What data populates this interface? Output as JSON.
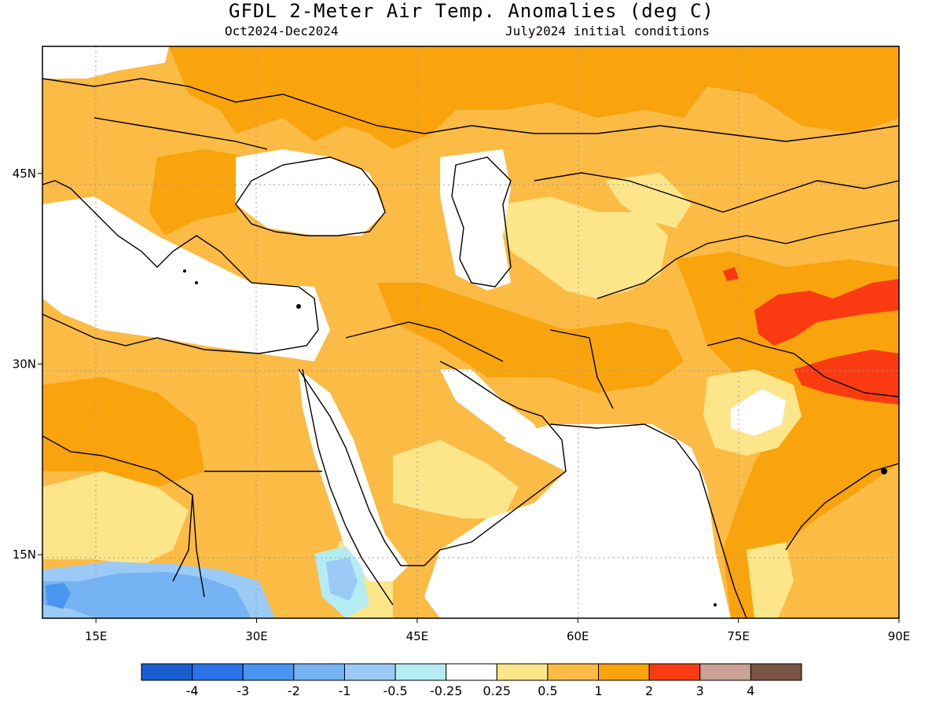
{
  "header": {
    "title": "GFDL 2-Meter Air Temp. Anomalies (deg C)",
    "period": "Oct2024-Dec2024",
    "init": "July2024 initial conditions"
  },
  "map": {
    "lon_range": [
      10,
      90
    ],
    "lat_range": [
      10,
      55
    ],
    "x_ticks": [
      {
        "lon": 15,
        "label": "15E"
      },
      {
        "lon": 30,
        "label": "30E"
      },
      {
        "lon": 45,
        "label": "45E"
      },
      {
        "lon": 60,
        "label": "60E"
      },
      {
        "lon": 75,
        "label": "75E"
      },
      {
        "lon": 90,
        "label": "90E"
      }
    ],
    "y_ticks": [
      {
        "lat": 45,
        "label": "45N"
      },
      {
        "lat": 30,
        "label": "30N"
      },
      {
        "lat": 15,
        "label": "15N"
      }
    ]
  },
  "colorbar": {
    "colors": [
      "#1a5fd1",
      "#2a73e8",
      "#4a95f0",
      "#76b3f4",
      "#9ccaf7",
      "#b4ecf2",
      "#ffffff",
      "#fde68a",
      "#fbbb45",
      "#f9a30d",
      "#fa3b12",
      "#c8a396",
      "#7a5444"
    ],
    "labels": [
      "-4",
      "-3",
      "-2",
      "-1",
      "-0.5",
      "-0.25",
      "0.25",
      "0.5",
      "1",
      "2",
      "3",
      "4"
    ]
  },
  "colors": {
    "anom_0_5_to_1": "#fde68a",
    "anom_1_to_2": "#fbbb45",
    "anom_2_to_3": "#f9a30d",
    "anom_3_to_4": "#fa3b12",
    "anom_neg_0_5": "#9ccaf7",
    "anom_neg_1": "#76b3f4",
    "anom_neg_2": "#4a95f0"
  }
}
